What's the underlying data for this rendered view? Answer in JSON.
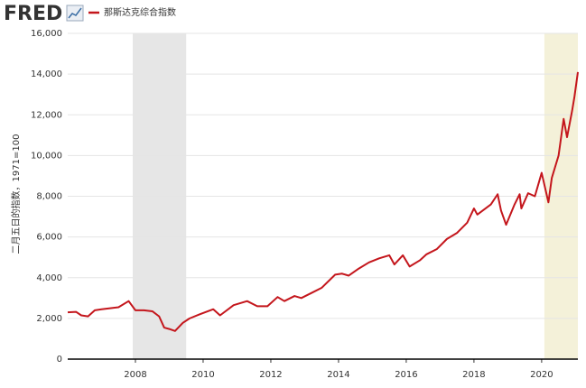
{
  "logo": "FRED",
  "chart_data": {
    "type": "line",
    "ylabel": "二月五日的指数，1971=100",
    "xlim": [
      2006.0,
      2021.07
    ],
    "ylim": [
      0,
      16000
    ],
    "xticks": [
      2008,
      2010,
      2012,
      2014,
      2016,
      2018,
      2020
    ],
    "yticks": [
      0,
      {
        "value": 2000,
        "label": "2,000"
      },
      {
        "value": 4000,
        "label": "4,000"
      },
      {
        "value": 6000,
        "label": "6,000"
      },
      {
        "value": 8000,
        "label": "8,000"
      },
      {
        "value": 10000,
        "label": "10,000"
      },
      {
        "value": 12000,
        "label": "12,000"
      },
      {
        "value": 14000,
        "label": "14,000"
      },
      {
        "value": 16000,
        "label": "16,000"
      }
    ],
    "grid": true,
    "legend": "top-left",
    "shading": [
      {
        "range": [
          2007.92,
          2009.5
        ],
        "color": "#e6e6e6"
      },
      {
        "range": [
          2020.08,
          2021.07
        ],
        "color": "#f4f1d9"
      }
    ],
    "x": [
      2006.0,
      2006.25,
      2006.4,
      2006.6,
      2006.8,
      2007.0,
      2007.25,
      2007.5,
      2007.8,
      2008.0,
      2008.25,
      2008.5,
      2008.7,
      2008.85,
      2009.0,
      2009.17,
      2009.4,
      2009.6,
      2009.9,
      2010.3,
      2010.5,
      2010.9,
      2011.3,
      2011.6,
      2011.9,
      2012.2,
      2012.4,
      2012.7,
      2012.9,
      2013.2,
      2013.5,
      2013.9,
      2014.1,
      2014.3,
      2014.6,
      2014.9,
      2015.2,
      2015.5,
      2015.65,
      2015.9,
      2016.1,
      2016.4,
      2016.6,
      2016.9,
      2017.2,
      2017.5,
      2017.8,
      2018.0,
      2018.1,
      2018.5,
      2018.7,
      2018.8,
      2018.95,
      2019.2,
      2019.35,
      2019.4,
      2019.6,
      2019.8,
      2020.0,
      2020.2,
      2020.3,
      2020.5,
      2020.65,
      2020.75,
      2020.9,
      2020.97,
      2021.07
    ],
    "series": [
      {
        "name": "那斯达克综合指数",
        "color": "#c4161c",
        "values": [
          2300,
          2320,
          2150,
          2100,
          2400,
          2450,
          2500,
          2550,
          2850,
          2400,
          2400,
          2350,
          2100,
          1550,
          1480,
          1380,
          1780,
          2000,
          2200,
          2450,
          2150,
          2650,
          2850,
          2600,
          2600,
          3050,
          2850,
          3100,
          3000,
          3250,
          3500,
          4150,
          4200,
          4100,
          4450,
          4750,
          4950,
          5100,
          4650,
          5100,
          4550,
          4850,
          5150,
          5400,
          5900,
          6200,
          6700,
          7400,
          7100,
          7600,
          8100,
          7300,
          6600,
          7600,
          8100,
          7400,
          8150,
          8000,
          9150,
          7700,
          8900,
          10000,
          11800,
          10900,
          12200,
          12900,
          14100
        ]
      }
    ]
  }
}
